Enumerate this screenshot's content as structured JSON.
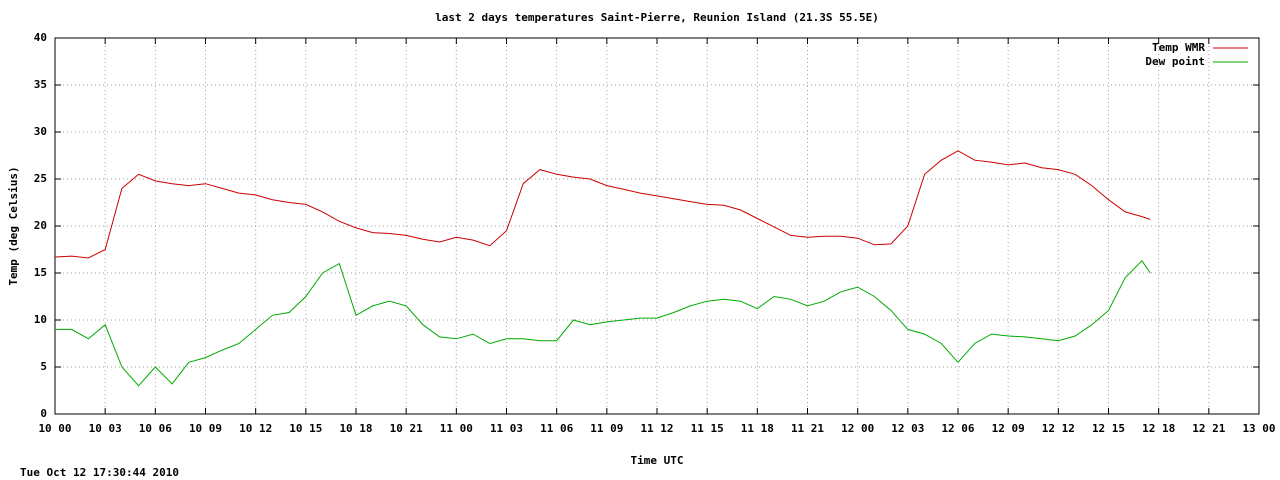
{
  "chart_data": {
    "type": "line",
    "title": "last 2 days temperatures Saint-Pierre, Reunion Island (21.3S 55.5E)",
    "xlabel": "Time UTC",
    "ylabel": "Temp (deg Celsius)",
    "footer": "Tue Oct 12 17:30:44 2010",
    "x": [
      0,
      1,
      2,
      3,
      4,
      5,
      6,
      7,
      8,
      9,
      10,
      11,
      12,
      13,
      14,
      15,
      16,
      17,
      18,
      19,
      20,
      21,
      22,
      23,
      24,
      25,
      26,
      27,
      28,
      29,
      30,
      31,
      32,
      33,
      34,
      35,
      36,
      37,
      38,
      39,
      40,
      41,
      42,
      43,
      44,
      45,
      46,
      47,
      48,
      49,
      50,
      51,
      52,
      53,
      54,
      55,
      56,
      57,
      58,
      59,
      60,
      61,
      62,
      63,
      64,
      65,
      65.5
    ],
    "series": [
      {
        "name": "Temp WMR",
        "color": "#cc0000",
        "values": [
          16.7,
          16.8,
          16.6,
          17.5,
          24,
          25.5,
          24.8,
          24.5,
          24.3,
          24.5,
          24,
          23.5,
          23.3,
          22.8,
          22.5,
          22.3,
          21.5,
          20.5,
          19.8,
          19.3,
          19.2,
          19,
          18.6,
          18.3,
          18.8,
          18.5,
          17.9,
          19.5,
          24.5,
          26,
          25.5,
          25.2,
          25,
          24.3,
          23.9,
          23.5,
          23.2,
          22.9,
          22.6,
          22.3,
          22.2,
          21.7,
          20.8,
          19.9,
          19,
          18.8,
          18.9,
          18.9,
          18.7,
          18,
          18.1,
          20,
          25.5,
          27,
          28,
          27,
          26.8,
          26.5,
          26.7,
          26.2,
          26,
          25.5,
          24.3,
          22.8,
          21.5,
          21,
          20.7
        ]
      },
      {
        "name": "Dew point",
        "color": "#00aa00",
        "values": [
          9,
          9,
          8,
          9.5,
          5,
          3,
          5,
          3.2,
          5.5,
          6,
          6.8,
          7.5,
          9,
          10.5,
          10.8,
          12.5,
          15,
          16,
          10.5,
          11.5,
          12,
          11.5,
          9.5,
          8.2,
          8,
          8.5,
          7.5,
          8,
          8,
          7.8,
          7.8,
          10,
          9.5,
          9.8,
          10,
          10.2,
          10.2,
          10.8,
          11.5,
          12,
          12.2,
          12,
          11.2,
          12.5,
          12.2,
          11.5,
          12,
          13,
          13.5,
          12.5,
          11,
          9,
          8.5,
          7.5,
          5.5,
          7.5,
          8.5,
          8.3,
          8.2,
          8,
          7.8,
          8.3,
          9.5,
          11,
          14.5,
          16.3,
          15
        ]
      }
    ],
    "xlim": [
      0,
      72
    ],
    "xticks": [
      {
        "value": 0,
        "label": "10 00"
      },
      {
        "value": 3,
        "label": "10 03"
      },
      {
        "value": 6,
        "label": "10 06"
      },
      {
        "value": 9,
        "label": "10 09"
      },
      {
        "value": 12,
        "label": "10 12"
      },
      {
        "value": 15,
        "label": "10 15"
      },
      {
        "value": 18,
        "label": "10 18"
      },
      {
        "value": 21,
        "label": "10 21"
      },
      {
        "value": 24,
        "label": "11 00"
      },
      {
        "value": 27,
        "label": "11 03"
      },
      {
        "value": 30,
        "label": "11 06"
      },
      {
        "value": 33,
        "label": "11 09"
      },
      {
        "value": 36,
        "label": "11 12"
      },
      {
        "value": 39,
        "label": "11 15"
      },
      {
        "value": 42,
        "label": "11 18"
      },
      {
        "value": 45,
        "label": "11 21"
      },
      {
        "value": 48,
        "label": "12 00"
      },
      {
        "value": 51,
        "label": "12 03"
      },
      {
        "value": 54,
        "label": "12 06"
      },
      {
        "value": 57,
        "label": "12 09"
      },
      {
        "value": 60,
        "label": "12 12"
      },
      {
        "value": 63,
        "label": "12 15"
      },
      {
        "value": 66,
        "label": "12 18"
      },
      {
        "value": 69,
        "label": "12 21"
      },
      {
        "value": 72,
        "label": "13 00"
      }
    ],
    "ylim": [
      0,
      40
    ],
    "yticks": [
      0,
      5,
      10,
      15,
      20,
      25,
      30,
      35,
      40
    ],
    "grid": true,
    "legend": "upper right"
  }
}
